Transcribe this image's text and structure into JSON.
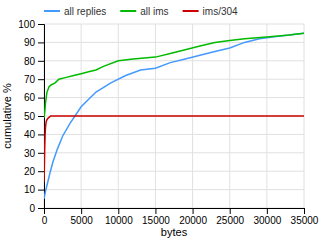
{
  "chart_data": {
    "type": "line",
    "xlabel": "bytes",
    "ylabel": "cumulative %",
    "xlim": [
      0,
      35000
    ],
    "ylim": [
      0,
      100
    ],
    "xticks": [
      0,
      5000,
      10000,
      15000,
      20000,
      25000,
      30000,
      35000
    ],
    "yticks": [
      0,
      10,
      20,
      30,
      40,
      50,
      60,
      70,
      80,
      90,
      100
    ],
    "grid": true,
    "legend": "top",
    "series": [
      {
        "name": "all replies",
        "color": "#4499ff",
        "x": [
          0,
          200,
          500,
          800,
          1200,
          1800,
          2500,
          3500,
          5000,
          7000,
          9000,
          11000,
          13000,
          15000,
          17000,
          19000,
          21000,
          23000,
          25000,
          27000,
          29000,
          31000,
          33000,
          35000
        ],
        "values": [
          5,
          9,
          14,
          19,
          25,
          32,
          39,
          46,
          55,
          63,
          68,
          72,
          75,
          76,
          79,
          81,
          83,
          85,
          87,
          90,
          92,
          93,
          94,
          95
        ]
      },
      {
        "name": "all ims",
        "color": "#00bb00",
        "x": [
          0,
          100,
          200,
          400,
          700,
          1000,
          1500,
          2000,
          3000,
          4000,
          5000,
          6000,
          7000,
          8000,
          10000,
          12000,
          15000,
          17000,
          19000,
          21000,
          23000,
          25000,
          27000,
          30000,
          33000,
          35000
        ],
        "values": [
          49,
          52,
          57,
          63,
          66,
          67,
          68,
          70,
          71,
          72,
          73,
          74,
          75,
          77,
          80,
          81,
          82,
          84,
          86,
          88,
          90,
          91,
          92,
          93,
          94,
          95
        ]
      },
      {
        "name": "ims/304",
        "color": "#cc0000",
        "x": [
          0,
          50,
          100,
          150,
          200,
          300,
          400,
          600,
          900,
          1500,
          3000,
          35000
        ],
        "values": [
          14,
          22,
          33,
          40,
          44,
          47,
          48,
          49,
          50,
          50,
          50,
          50
        ]
      }
    ]
  }
}
